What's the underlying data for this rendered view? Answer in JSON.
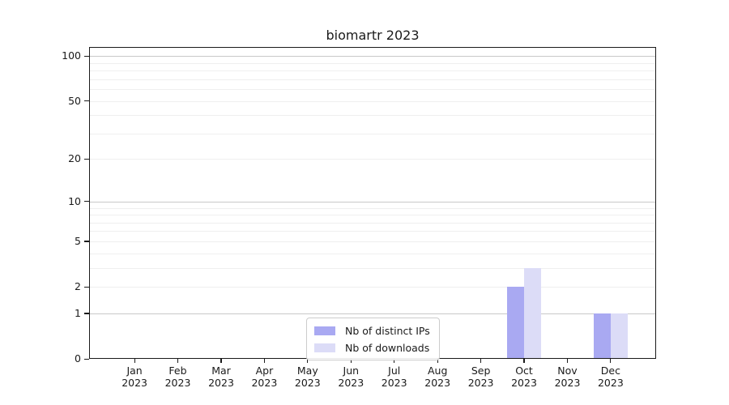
{
  "chart_data": {
    "type": "bar",
    "title": "biomartr 2023",
    "categories": [
      "Jan",
      "Feb",
      "Mar",
      "Apr",
      "May",
      "Jun",
      "Jul",
      "Aug",
      "Sep",
      "Oct",
      "Nov",
      "Dec"
    ],
    "category_sublabel": "2023",
    "series": [
      {
        "name": "Nb of distinct IPs",
        "color": "#a9a9f2",
        "values": [
          0,
          0,
          0,
          0,
          0,
          0,
          0,
          0,
          0,
          2,
          0,
          1
        ]
      },
      {
        "name": "Nb of downloads",
        "color": "#dcdcf7",
        "values": [
          0,
          0,
          0,
          0,
          0,
          0,
          0,
          0,
          0,
          3,
          0,
          1
        ]
      }
    ],
    "yscale": "log10(1+value)",
    "ylim": [
      0,
      115
    ],
    "yticks": [
      0,
      1,
      2,
      5,
      10,
      20,
      50,
      100
    ],
    "gridlines_major": [
      1,
      10,
      100
    ],
    "gridlines_minor": [
      2,
      3,
      4,
      5,
      6,
      7,
      8,
      9,
      20,
      30,
      40,
      50,
      60,
      70,
      80,
      90
    ],
    "legend_position": "lower center",
    "xlabel": "",
    "ylabel": ""
  },
  "colors": {
    "background": "#ffffff",
    "spine": "#1a1a1a",
    "text": "#1a1a1a",
    "major_grid": "#c8c8c8",
    "minor_grid": "#efefef",
    "legend_border": "#cccccc",
    "bar_distinct_ips": "#a9a9f2",
    "bar_downloads": "#dcdcf7"
  }
}
